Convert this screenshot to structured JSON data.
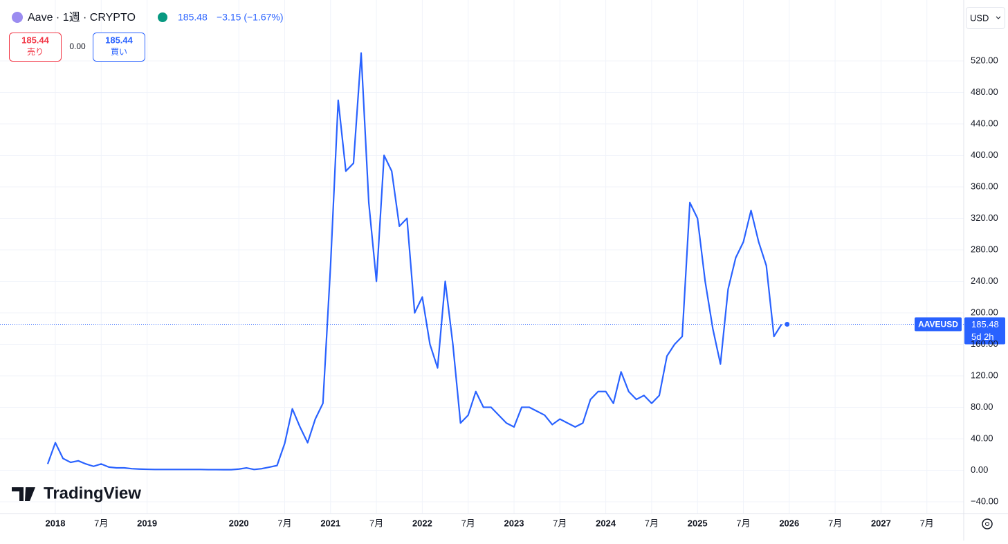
{
  "header": {
    "symbol": "Aave · 1週 · CRYPTO",
    "change": "−3.15 (−1.67%)",
    "sell_price": "185.44",
    "sell_label": "売り",
    "spread": "0.00",
    "buy_price": "185.44",
    "buy_label": "買い",
    "currency": "USD",
    "watermark": "TradingView"
  },
  "chart_data": {
    "type": "line",
    "x": [
      "2017-12",
      "2018-01",
      "2018-02",
      "2018-03",
      "2018-04",
      "2018-05",
      "2018-06",
      "2018-07",
      "2018-08",
      "2018-09",
      "2018-10",
      "2018-11",
      "2018-12",
      "2019-01",
      "2019-02",
      "2019-03",
      "2019-04",
      "2019-05",
      "2019-06",
      "2019-07",
      "2019-08",
      "2019-09",
      "2019-10",
      "2019-11",
      "2019-12",
      "2020-01",
      "2020-02",
      "2020-03",
      "2020-04",
      "2020-05",
      "2020-06",
      "2020-07",
      "2020-08",
      "2020-09",
      "2020-10",
      "2020-11",
      "2020-12",
      "2021-01",
      "2021-02",
      "2021-03",
      "2021-04",
      "2021-05",
      "2021-06",
      "2021-07",
      "2021-08",
      "2021-09",
      "2021-10",
      "2021-11",
      "2021-12",
      "2022-01",
      "2022-02",
      "2022-03",
      "2022-04",
      "2022-05",
      "2022-06",
      "2022-07",
      "2022-08",
      "2022-09",
      "2022-10",
      "2022-11",
      "2022-12",
      "2023-01",
      "2023-02",
      "2023-03",
      "2023-04",
      "2023-05",
      "2023-06",
      "2023-07",
      "2023-08",
      "2023-09",
      "2023-10",
      "2023-11",
      "2023-12",
      "2024-01",
      "2024-02",
      "2024-03",
      "2024-04",
      "2024-05",
      "2024-06",
      "2024-07",
      "2024-08",
      "2024-09",
      "2024-10",
      "2024-11",
      "2024-12",
      "2025-01",
      "2025-02",
      "2025-03",
      "2025-04",
      "2025-05",
      "2025-06",
      "2025-07",
      "2025-08",
      "2025-09",
      "2025-10",
      "2025-11",
      "2025-12"
    ],
    "series": [
      {
        "name": "AAVEUSD",
        "color": "#2962ff",
        "values": [
          8,
          35,
          15,
          10,
          12,
          8,
          5,
          8,
          4,
          3,
          3,
          2,
          1.5,
          1.2,
          1,
          1,
          1,
          1,
          1,
          1,
          1,
          0.8,
          0.8,
          0.7,
          0.7,
          1.5,
          3,
          1,
          2,
          4,
          6,
          34,
          78,
          55,
          35,
          65,
          85,
          260,
          470,
          380,
          390,
          530,
          340,
          240,
          400,
          380,
          310,
          320,
          200,
          220,
          160,
          130,
          240,
          160,
          60,
          70,
          100,
          80,
          80,
          70,
          60,
          55,
          80,
          80,
          75,
          70,
          58,
          65,
          60,
          55,
          60,
          90,
          100,
          100,
          85,
          125,
          100,
          90,
          95,
          85,
          95,
          145,
          160,
          170,
          340,
          320,
          240,
          180,
          135,
          230,
          270,
          290,
          330,
          290,
          260,
          170,
          185.48
        ]
      }
    ],
    "last_price": 185.48,
    "countdown": "5d 2h",
    "ylim": [
      -55,
      593
    ],
    "yticks": [
      {
        "value": -40,
        "label": "−40.00"
      },
      {
        "value": 0,
        "label": "0.00"
      },
      {
        "value": 40,
        "label": "40.00"
      },
      {
        "value": 80,
        "label": "80.00"
      },
      {
        "value": 120,
        "label": "120.00"
      },
      {
        "value": 160,
        "label": "160.00"
      },
      {
        "value": 200,
        "label": "200.00"
      },
      {
        "value": 240,
        "label": "240.00"
      },
      {
        "value": 280,
        "label": "280.00"
      },
      {
        "value": 320,
        "label": "320.00"
      },
      {
        "value": 360,
        "label": "360.00"
      },
      {
        "value": 400,
        "label": "400.00"
      },
      {
        "value": 440,
        "label": "440.00"
      },
      {
        "value": 480,
        "label": "480.00"
      },
      {
        "value": 520,
        "label": "520.00"
      }
    ],
    "xticks": [
      {
        "value": "2018-01",
        "label": "2018"
      },
      {
        "value": "2018-07",
        "label": "7月"
      },
      {
        "value": "2019-01",
        "label": "2019"
      },
      {
        "value": "2020-01",
        "label": "2020"
      },
      {
        "value": "2020-07",
        "label": "7月"
      },
      {
        "value": "2021-01",
        "label": "2021"
      },
      {
        "value": "2021-07",
        "label": "7月"
      },
      {
        "value": "2022-01",
        "label": "2022"
      },
      {
        "value": "2022-07",
        "label": "7月"
      },
      {
        "value": "2023-01",
        "label": "2023"
      },
      {
        "value": "2023-07",
        "label": "7月"
      },
      {
        "value": "2024-01",
        "label": "2024"
      },
      {
        "value": "2024-07",
        "label": "7月"
      },
      {
        "value": "2025-01",
        "label": "2025"
      },
      {
        "value": "2025-07",
        "label": "7月"
      },
      {
        "value": "2026-01",
        "label": "2026"
      },
      {
        "value": "2026-07",
        "label": "7月"
      },
      {
        "value": "2027-01",
        "label": "2027"
      },
      {
        "value": "2027-07",
        "label": "7月"
      }
    ],
    "grid": true
  }
}
